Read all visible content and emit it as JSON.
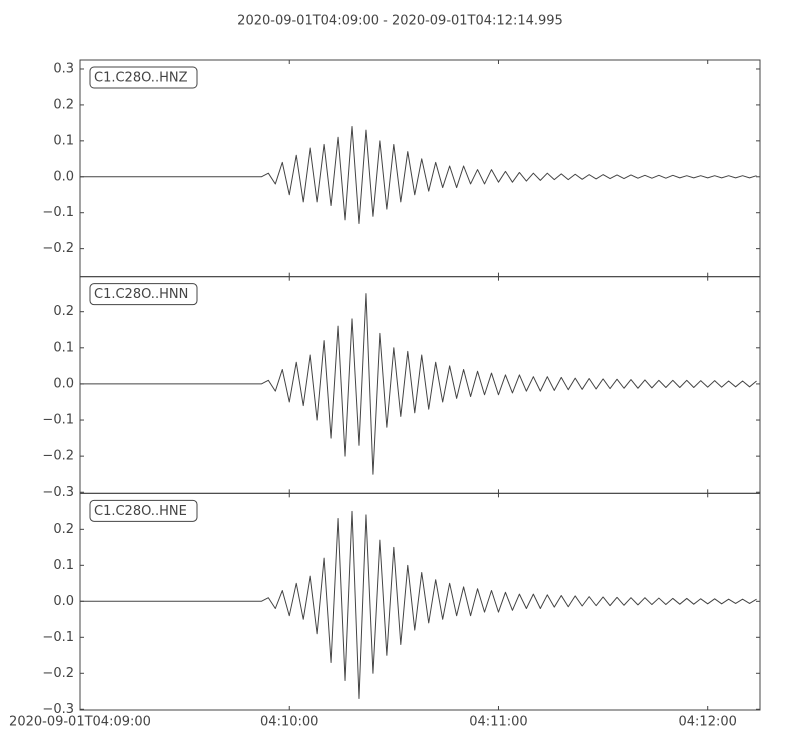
{
  "chart_data": {
    "type": "line",
    "title": "2020-09-01T04:09:00  -  2020-09-01T04:12:14.995",
    "xlim": [
      "04:09:00",
      "04:12:14.995"
    ],
    "xticks": [
      {
        "value": "04:09:00",
        "label": "2020-09-01T04:09:00"
      },
      {
        "value": "04:10:00",
        "label": "04:10:00"
      },
      {
        "value": "04:11:00",
        "label": "04:11:00"
      },
      {
        "value": "04:12:00",
        "label": "04:12:00"
      }
    ],
    "x": [
      "04:09:00",
      "04:09:02",
      "04:09:04",
      "04:09:06",
      "04:09:08",
      "04:09:10",
      "04:09:12",
      "04:09:14",
      "04:09:16",
      "04:09:18",
      "04:09:20",
      "04:09:22",
      "04:09:24",
      "04:09:26",
      "04:09:28",
      "04:09:30",
      "04:09:32",
      "04:09:34",
      "04:09:36",
      "04:09:38",
      "04:09:40",
      "04:09:42",
      "04:09:44",
      "04:09:46",
      "04:09:48",
      "04:09:50",
      "04:09:52",
      "04:09:54",
      "04:09:56",
      "04:09:58",
      "04:10:00",
      "04:10:02",
      "04:10:04",
      "04:10:06",
      "04:10:08",
      "04:10:10",
      "04:10:12",
      "04:10:14",
      "04:10:16",
      "04:10:18",
      "04:10:20",
      "04:10:22",
      "04:10:24",
      "04:10:26",
      "04:10:28",
      "04:10:30",
      "04:10:32",
      "04:10:34",
      "04:10:36",
      "04:10:38",
      "04:10:40",
      "04:10:42",
      "04:10:44",
      "04:10:46",
      "04:10:48",
      "04:10:50",
      "04:10:52",
      "04:10:54",
      "04:10:56",
      "04:10:58",
      "04:11:00",
      "04:11:02",
      "04:11:04",
      "04:11:06",
      "04:11:08",
      "04:11:10",
      "04:11:12",
      "04:11:14",
      "04:11:16",
      "04:11:18",
      "04:11:20",
      "04:11:22",
      "04:11:24",
      "04:11:26",
      "04:11:28",
      "04:11:30",
      "04:11:32",
      "04:11:34",
      "04:11:36",
      "04:11:38",
      "04:11:40",
      "04:11:42",
      "04:11:44",
      "04:11:46",
      "04:11:48",
      "04:11:50",
      "04:11:52",
      "04:11:54",
      "04:11:56",
      "04:11:58",
      "04:12:00",
      "04:12:02",
      "04:12:04",
      "04:12:06",
      "04:12:08",
      "04:12:10",
      "04:12:12",
      "04:12:14"
    ],
    "series": [
      {
        "name": "C1.C28O..HNZ",
        "color": "#444444",
        "ylim": [
          -0.278,
          0.325
        ],
        "yticks": [
          {
            "value": -0.2,
            "label": "−0.2"
          },
          {
            "value": -0.1,
            "label": "−0.1"
          },
          {
            "value": 0,
            "label": "0.0"
          },
          0.1,
          0.2,
          0.3
        ],
        "values": [
          0,
          0,
          0,
          0,
          0,
          0,
          0,
          0,
          0,
          0,
          0,
          0,
          0,
          0,
          0,
          0,
          0,
          0,
          0,
          0,
          0,
          0,
          0,
          0,
          0,
          0,
          0,
          0.01,
          -0.02,
          0.04,
          -0.05,
          0.06,
          -0.07,
          0.08,
          -0.07,
          0.09,
          -0.08,
          0.11,
          -0.12,
          0.14,
          -0.13,
          0.13,
          -0.11,
          0.1,
          -0.09,
          0.09,
          -0.07,
          0.07,
          -0.05,
          0.05,
          -0.04,
          0.04,
          -0.03,
          0.03,
          -0.03,
          0.03,
          -0.02,
          0.02,
          -0.02,
          0.02,
          -0.015,
          0.015,
          -0.015,
          0.012,
          -0.012,
          0.01,
          -0.01,
          0.01,
          -0.008,
          0.008,
          -0.008,
          0.007,
          -0.007,
          0.006,
          -0.006,
          0.006,
          -0.005,
          0.005,
          -0.005,
          0.005,
          -0.004,
          0.004,
          -0.004,
          0.004,
          -0.004,
          0.004,
          -0.003,
          0.003,
          -0.003,
          0.003,
          -0.003,
          0.003,
          -0.003,
          0.003,
          -0.003,
          0.003,
          -0.003,
          0.003
        ]
      },
      {
        "name": "C1.C28O..HNN",
        "color": "#444444",
        "ylim": [
          -0.303,
          0.297
        ],
        "yticks": [
          {
            "value": -0.3,
            "label": "−0.3"
          },
          {
            "value": -0.2,
            "label": "−0.2"
          },
          {
            "value": -0.1,
            "label": "−0.1"
          },
          {
            "value": 0,
            "label": "0.0"
          },
          0.1,
          0.2
        ],
        "values": [
          0,
          0,
          0,
          0,
          0,
          0,
          0,
          0,
          0,
          0,
          0,
          0,
          0,
          0,
          0,
          0,
          0,
          0,
          0,
          0,
          0,
          0,
          0,
          0,
          0,
          0,
          0,
          0.01,
          -0.02,
          0.04,
          -0.05,
          0.06,
          -0.06,
          0.08,
          -0.1,
          0.12,
          -0.15,
          0.16,
          -0.2,
          0.18,
          -0.17,
          0.25,
          -0.25,
          0.14,
          -0.12,
          0.1,
          -0.09,
          0.09,
          -0.08,
          0.08,
          -0.07,
          0.06,
          -0.05,
          0.05,
          -0.04,
          0.04,
          -0.035,
          0.035,
          -0.03,
          0.03,
          -0.03,
          0.025,
          -0.025,
          0.025,
          -0.02,
          0.02,
          -0.02,
          0.02,
          -0.018,
          0.018,
          -0.016,
          0.016,
          -0.015,
          0.015,
          -0.014,
          0.014,
          -0.013,
          0.013,
          -0.012,
          0.012,
          -0.012,
          0.011,
          -0.011,
          0.01,
          -0.01,
          0.01,
          -0.01,
          0.01,
          -0.01,
          0.009,
          -0.009,
          0.009,
          -0.009,
          0.008,
          -0.008,
          0.008,
          -0.008,
          0.008
        ]
      },
      {
        "name": "C1.C28O..HNE",
        "color": "#444444",
        "ylim": [
          -0.302,
          0.3
        ],
        "yticks": [
          {
            "value": -0.3,
            "label": "−0.3"
          },
          {
            "value": -0.2,
            "label": "−0.2"
          },
          {
            "value": -0.1,
            "label": "−0.1"
          },
          {
            "value": 0,
            "label": "0.0"
          },
          0.1,
          0.2
        ],
        "values": [
          0,
          0,
          0,
          0,
          0,
          0,
          0,
          0,
          0,
          0,
          0,
          0,
          0,
          0,
          0,
          0,
          0,
          0,
          0,
          0,
          0,
          0,
          0,
          0,
          0,
          0,
          0,
          0.01,
          -0.02,
          0.03,
          -0.04,
          0.05,
          -0.05,
          0.07,
          -0.09,
          0.12,
          -0.17,
          0.23,
          -0.22,
          0.25,
          -0.27,
          0.24,
          -0.2,
          0.17,
          -0.15,
          0.15,
          -0.12,
          0.1,
          -0.08,
          0.08,
          -0.06,
          0.06,
          -0.05,
          0.05,
          -0.04,
          0.04,
          -0.04,
          0.035,
          -0.03,
          0.03,
          -0.03,
          0.025,
          -0.025,
          0.02,
          -0.02,
          0.02,
          -0.02,
          0.018,
          -0.016,
          0.016,
          -0.015,
          0.015,
          -0.013,
          0.013,
          -0.012,
          0.012,
          -0.012,
          0.011,
          -0.011,
          0.01,
          -0.01,
          0.01,
          -0.009,
          0.009,
          -0.009,
          0.008,
          -0.008,
          0.008,
          -0.008,
          0.007,
          -0.007,
          0.007,
          -0.007,
          0.006,
          -0.006,
          0.006,
          -0.006,
          0.006
        ]
      }
    ]
  }
}
